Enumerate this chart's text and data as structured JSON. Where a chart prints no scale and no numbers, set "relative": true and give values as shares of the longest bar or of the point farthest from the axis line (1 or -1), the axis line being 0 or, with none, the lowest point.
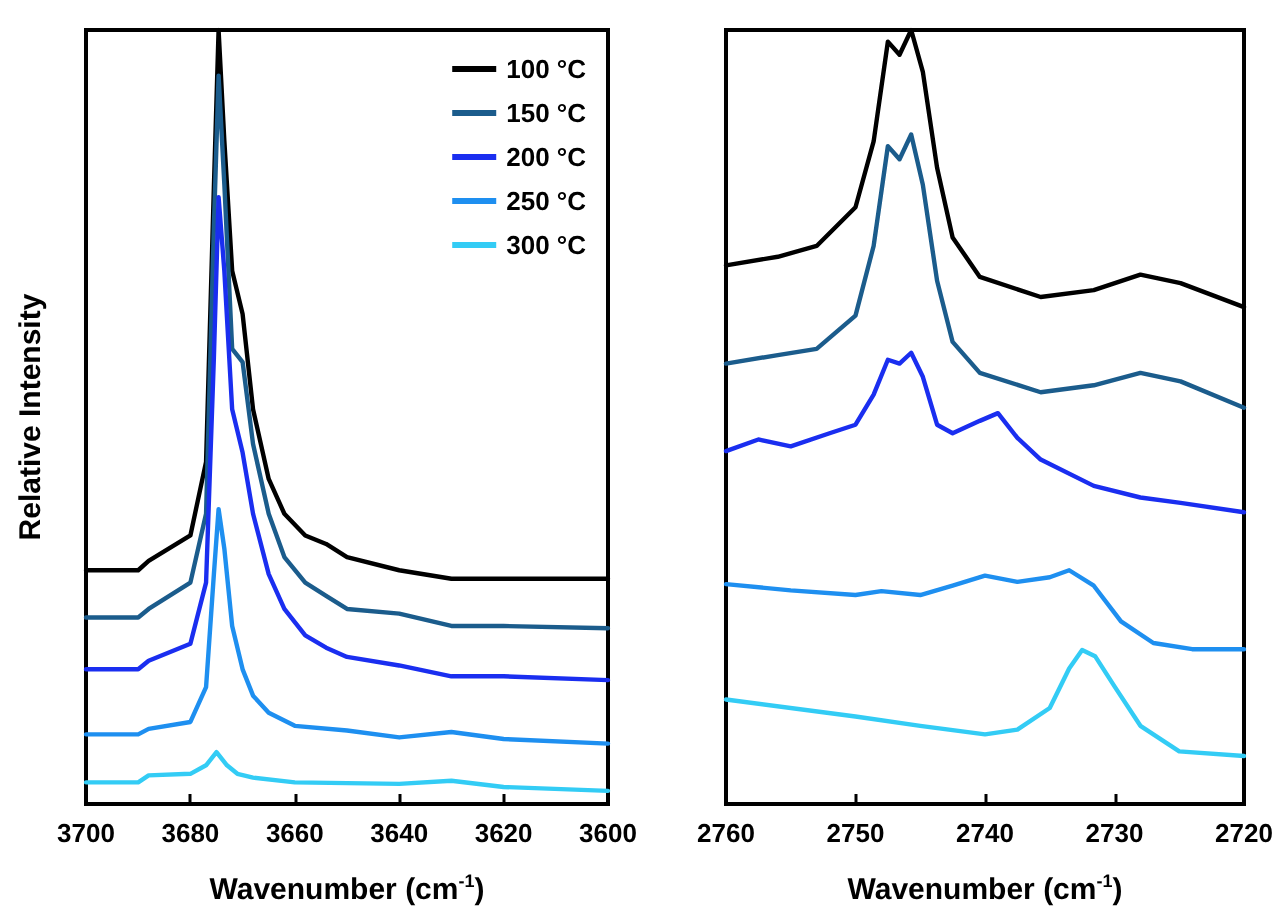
{
  "chart_data": [
    {
      "type": "line",
      "relative": true,
      "xlabel": "Wavenumber (cm$^{-1}$)",
      "ylabel": "Relative Intensity",
      "xlim": [
        3700,
        3600
      ],
      "xticks": [
        3700,
        3680,
        3660,
        3640,
        3620,
        3600
      ],
      "legend": "top right",
      "grid": false,
      "series": [
        {
          "name": "100 °C",
          "color": "#000000",
          "x": [
            3700,
            3690,
            3688,
            3680,
            3677,
            3675.5,
            3674.6,
            3673.5,
            3672,
            3670,
            3668,
            3665,
            3662,
            3658,
            3654,
            3650,
            3640,
            3630,
            3620,
            3600
          ],
          "values": [
            0.302,
            0.302,
            0.314,
            0.347,
            0.442,
            0.797,
            1,
            0.857,
            0.689,
            0.633,
            0.51,
            0.42,
            0.375,
            0.347,
            0.336,
            0.319,
            0.302,
            0.291,
            0.291,
            0.291
          ]
        },
        {
          "name": "150 °C",
          "color": "#1b5c8c",
          "x": [
            3700,
            3690,
            3688,
            3680,
            3677,
            3675.5,
            3674.6,
            3673.5,
            3672,
            3670,
            3668,
            3665,
            3662,
            3658,
            3654,
            3650,
            3640,
            3630,
            3620,
            3600
          ],
          "values": [
            0.241,
            0.241,
            0.252,
            0.286,
            0.375,
            0.745,
            0.941,
            0.801,
            0.588,
            0.571,
            0.465,
            0.375,
            0.319,
            0.286,
            0.269,
            0.252,
            0.246,
            0.23,
            0.23,
            0.227
          ]
        },
        {
          "name": "200 °C",
          "color": "#1a2ef0",
          "x": [
            3700,
            3690,
            3688,
            3680,
            3677,
            3675.5,
            3674.6,
            3673.5,
            3672,
            3670,
            3668,
            3665,
            3662,
            3658,
            3654,
            3650,
            3640,
            3630,
            3620,
            3600
          ],
          "values": [
            0.174,
            0.174,
            0.185,
            0.207,
            0.286,
            0.577,
            0.784,
            0.689,
            0.51,
            0.454,
            0.375,
            0.297,
            0.252,
            0.218,
            0.202,
            0.19,
            0.179,
            0.165,
            0.165,
            0.16
          ]
        },
        {
          "name": "250 °C",
          "color": "#1e8ff0",
          "x": [
            3700,
            3690,
            3688,
            3680,
            3677,
            3675.5,
            3674.6,
            3673.5,
            3672,
            3670,
            3668,
            3665,
            3660,
            3650,
            3640,
            3630,
            3620,
            3600
          ],
          "values": [
            0.09,
            0.09,
            0.097,
            0.106,
            0.151,
            0.297,
            0.381,
            0.33,
            0.23,
            0.174,
            0.14,
            0.118,
            0.101,
            0.095,
            0.086,
            0.093,
            0.084,
            0.078
          ]
        },
        {
          "name": "300 °C",
          "color": "#33ccf5",
          "x": [
            3700,
            3690,
            3688,
            3680,
            3677,
            3675,
            3673,
            3671,
            3668,
            3660,
            3640,
            3630,
            3620,
            3600
          ],
          "values": [
            0.028,
            0.028,
            0.037,
            0.039,
            0.05,
            0.067,
            0.05,
            0.039,
            0.034,
            0.028,
            0.026,
            0.03,
            0.022,
            0.017
          ]
        }
      ]
    },
    {
      "type": "line",
      "relative": true,
      "xlabel": "Wavenumber (cm$^{-1}$)",
      "xlim": [
        2760,
        2720
      ],
      "xticks": [
        2760,
        2750,
        2740,
        2730,
        2720
      ],
      "grid": false,
      "series": [
        {
          "color": "#000000",
          "x": [
            2760,
            2756,
            2753,
            2750,
            2748.6,
            2747.5,
            2746.6,
            2745.7,
            2744.8,
            2743.7,
            2742.5,
            2740.4,
            2735.7,
            2731.6,
            2728,
            2724.9,
            2720
          ],
          "values": [
            0.696,
            0.707,
            0.721,
            0.771,
            0.856,
            0.985,
            0.968,
            1,
            0.946,
            0.822,
            0.732,
            0.681,
            0.655,
            0.664,
            0.684,
            0.673,
            0.642
          ]
        },
        {
          "color": "#1b5c8c",
          "x": [
            2760,
            2756,
            2753,
            2750,
            2748.6,
            2747.5,
            2746.6,
            2745.7,
            2744.8,
            2743.7,
            2742.5,
            2740.4,
            2735.7,
            2731.6,
            2728,
            2724.9,
            2720
          ],
          "values": [
            0.569,
            0.58,
            0.588,
            0.631,
            0.721,
            0.85,
            0.833,
            0.865,
            0.8,
            0.676,
            0.597,
            0.557,
            0.532,
            0.541,
            0.557,
            0.546,
            0.512
          ]
        },
        {
          "color": "#1a2ef0",
          "x": [
            2760,
            2757.5,
            2755,
            2752,
            2750,
            2748.6,
            2747.5,
            2746.6,
            2745.7,
            2744.8,
            2743.7,
            2742.5,
            2740.4,
            2739,
            2737.5,
            2735.7,
            2731.6,
            2728,
            2724.9,
            2720
          ],
          "values": [
            0.456,
            0.471,
            0.462,
            0.479,
            0.49,
            0.529,
            0.574,
            0.569,
            0.583,
            0.552,
            0.49,
            0.479,
            0.495,
            0.505,
            0.473,
            0.445,
            0.411,
            0.396,
            0.389,
            0.377
          ]
        },
        {
          "color": "#1e8ff0",
          "x": [
            2760,
            2755,
            2750,
            2748,
            2745,
            2742.5,
            2740,
            2737.5,
            2735,
            2733.5,
            2731.6,
            2729.5,
            2727,
            2724,
            2720
          ],
          "values": [
            0.284,
            0.276,
            0.27,
            0.275,
            0.27,
            0.282,
            0.295,
            0.287,
            0.293,
            0.302,
            0.282,
            0.236,
            0.208,
            0.2,
            0.2
          ]
        },
        {
          "color": "#33ccf5",
          "x": [
            2760,
            2750,
            2745,
            2740,
            2737.5,
            2735,
            2733.5,
            2732.5,
            2731.5,
            2730,
            2728,
            2725,
            2720
          ],
          "values": [
            0.135,
            0.113,
            0.101,
            0.09,
            0.096,
            0.124,
            0.175,
            0.199,
            0.191,
            0.152,
            0.101,
            0.068,
            0.062
          ]
        }
      ]
    }
  ]
}
